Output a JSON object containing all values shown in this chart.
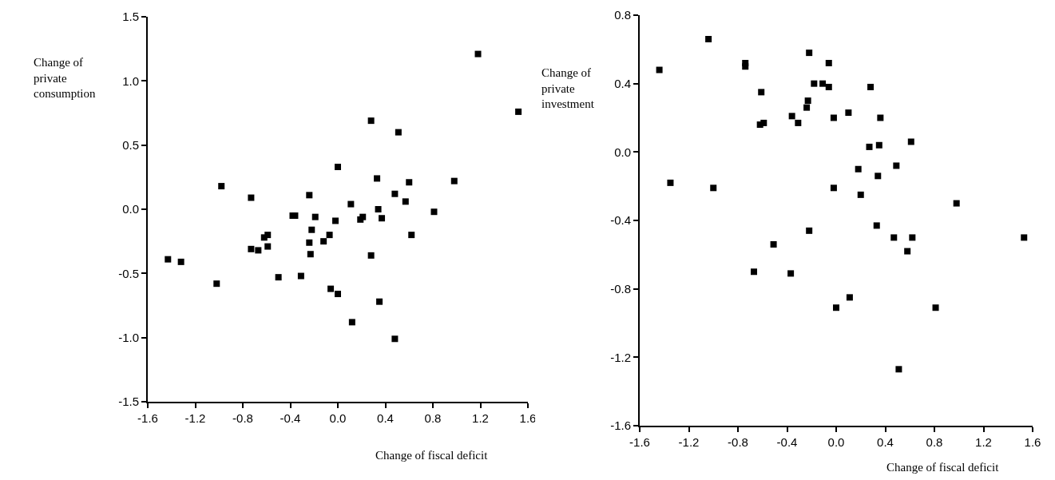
{
  "chart_data": [
    {
      "type": "scatter",
      "xlabel": "Change of fiscal deficit",
      "ylabel": "Change of private consumption",
      "marker": "square",
      "grid": false,
      "xlim": [
        -1.6,
        1.6
      ],
      "xticks": [
        -1.6,
        -1.2,
        -0.8,
        -0.4,
        {
          "value": 0,
          "label": "0.0"
        },
        0.4,
        0.8,
        1.2,
        1.6
      ],
      "ylim": [
        -1.5,
        1.5
      ],
      "yticks": [
        -1.5,
        {
          "value": -1,
          "label": "-1.0"
        },
        -0.5,
        {
          "value": 0,
          "label": "0.0"
        },
        0.5,
        {
          "value": 1,
          "label": "1.0"
        },
        1.5
      ],
      "series": [
        {
          "color": "#000000",
          "x": [
            -1.43,
            -1.32,
            -1.02,
            -0.98,
            -0.73,
            -0.73,
            -0.67,
            -0.62,
            -0.59,
            -0.59,
            -0.5,
            -0.38,
            -0.36,
            -0.31,
            -0.24,
            -0.24,
            -0.23,
            -0.22,
            -0.19,
            -0.12,
            -0.07,
            -0.06,
            -0.02,
            0.0,
            0.0,
            0.11,
            0.12,
            0.19,
            0.21,
            0.28,
            0.28,
            0.33,
            0.34,
            0.35,
            0.37,
            0.48,
            0.48,
            0.51,
            0.57,
            0.6,
            0.62,
            0.81,
            0.98,
            1.18,
            1.52
          ],
          "values": [
            -0.39,
            -0.41,
            -0.58,
            0.18,
            0.09,
            -0.31,
            -0.32,
            -0.22,
            -0.2,
            -0.29,
            -0.53,
            -0.05,
            -0.05,
            -0.52,
            0.11,
            -0.26,
            -0.35,
            -0.16,
            -0.06,
            -0.25,
            -0.2,
            -0.62,
            -0.09,
            0.33,
            -0.66,
            0.04,
            -0.88,
            -0.08,
            -0.06,
            0.69,
            -0.36,
            0.24,
            0.0,
            -0.72,
            -0.07,
            0.12,
            -1.01,
            0.6,
            0.06,
            0.21,
            -0.2,
            -0.02,
            0.22,
            1.21,
            0.76
          ]
        }
      ]
    },
    {
      "type": "scatter",
      "xlabel": "Change of fiscal deficit",
      "ylabel": "Change of private investment",
      "marker": "square",
      "grid": false,
      "xlim": [
        -1.6,
        1.6
      ],
      "xticks": [
        -1.6,
        -1.2,
        -0.8,
        -0.4,
        {
          "value": 0,
          "label": "0.0"
        },
        0.4,
        0.8,
        1.2,
        1.6
      ],
      "ylim": [
        -1.6,
        0.8
      ],
      "yticks": [
        -1.6,
        -1.2,
        -0.8,
        -0.4,
        {
          "value": 0,
          "label": "0.0"
        },
        0.4,
        0.8
      ],
      "series": [
        {
          "color": "#000000",
          "x": [
            -1.44,
            -1.35,
            -1.04,
            -1.0,
            -0.74,
            -0.74,
            -0.67,
            -0.61,
            -0.62,
            -0.59,
            -0.51,
            -0.36,
            -0.37,
            -0.31,
            -0.24,
            -0.23,
            -0.22,
            -0.22,
            -0.18,
            -0.11,
            -0.06,
            -0.06,
            -0.02,
            -0.02,
            0.0,
            0.1,
            0.11,
            0.18,
            0.2,
            0.27,
            0.28,
            0.33,
            0.34,
            0.35,
            0.36,
            0.47,
            0.49,
            0.51,
            0.58,
            0.61,
            0.62,
            0.81,
            0.98,
            1.53
          ],
          "values": [
            0.48,
            -0.18,
            0.66,
            -0.21,
            0.52,
            0.5,
            -0.7,
            0.35,
            0.16,
            0.17,
            -0.54,
            0.21,
            -0.71,
            0.17,
            0.26,
            0.3,
            0.58,
            -0.46,
            0.4,
            0.4,
            0.38,
            0.52,
            0.2,
            -0.21,
            -0.91,
            0.23,
            -0.85,
            -0.1,
            -0.25,
            0.03,
            0.38,
            -0.43,
            -0.14,
            0.04,
            0.2,
            -0.5,
            -0.08,
            -1.27,
            -0.58,
            0.06,
            -0.5,
            -0.91,
            -0.3,
            -0.5
          ]
        }
      ]
    }
  ]
}
